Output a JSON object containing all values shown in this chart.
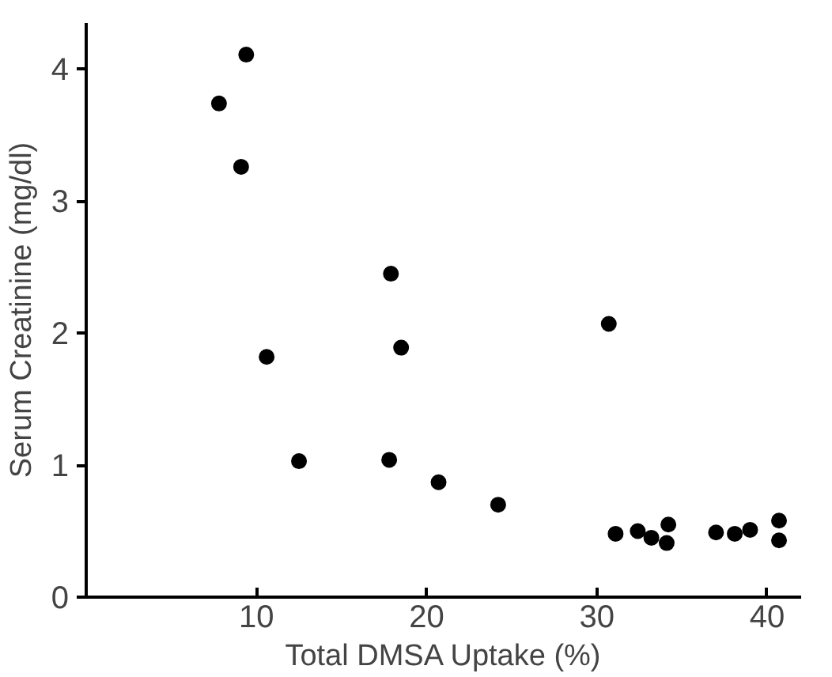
{
  "chart_data": {
    "type": "scatter",
    "xlabel": "Total DMSA Uptake (%)",
    "ylabel": "Serum Creatinine (mg/dl)",
    "xlim": [
      0,
      42
    ],
    "ylim": [
      0,
      4.35
    ],
    "xticks": [
      10,
      20,
      30,
      40
    ],
    "yticks": [
      0,
      1,
      2,
      3,
      4
    ],
    "grid": false,
    "marker": "circle",
    "series": [
      {
        "color": "#000000",
        "x": [
          7.8,
          9.4,
          9.1,
          10.6,
          12.5,
          17.9,
          18.5,
          17.8,
          20.7,
          24.2,
          30.7,
          31.1,
          32.4,
          33.2,
          34.2,
          34.1,
          37.0,
          38.1,
          39.0,
          40.7,
          40.7
        ],
        "values": [
          3.74,
          4.11,
          3.26,
          1.82,
          1.03,
          2.45,
          1.89,
          1.04,
          0.87,
          0.7,
          2.07,
          0.48,
          0.5,
          0.45,
          0.55,
          0.41,
          0.49,
          0.48,
          0.51,
          0.58,
          0.43
        ]
      }
    ]
  }
}
